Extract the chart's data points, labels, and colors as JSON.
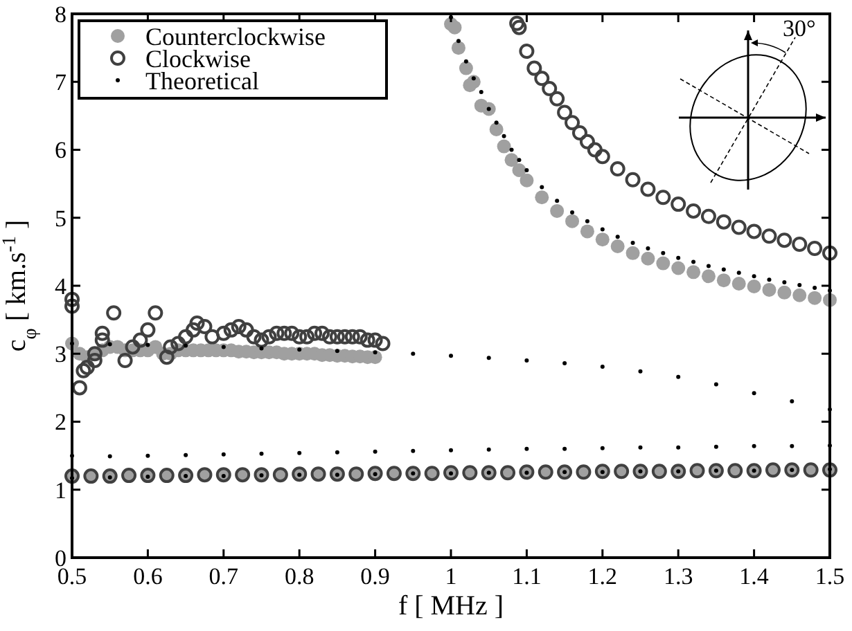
{
  "chart_data": {
    "type": "scatter",
    "xlabel": "f [ MHz ]",
    "ylabel": "c$_{φ}$ [ km.s$^{-1}$ ]",
    "xlim": [
      0.5,
      1.5
    ],
    "ylim": [
      0,
      8
    ],
    "xticks": [
      0.5,
      0.6,
      0.7,
      0.8,
      0.9,
      1,
      1.1,
      1.2,
      1.3,
      1.4,
      1.5
    ],
    "yticks": [
      0,
      1,
      2,
      3,
      4,
      5,
      6,
      7,
      8
    ],
    "grid": false,
    "legend": "top left",
    "marker": "circle",
    "annotations": [
      "30°"
    ],
    "series": [
      {
        "name": "Counterclockwise",
        "color": "#a0a0a0",
        "x": [
          0.5,
          0.525,
          0.55,
          0.575,
          0.6,
          0.625,
          0.65,
          0.675,
          0.7,
          0.725,
          0.75,
          0.775,
          0.8,
          0.825,
          0.85,
          0.875,
          0.9,
          0.925,
          0.95,
          0.975,
          1,
          1.025,
          1.05,
          1.075,
          1.1,
          1.125,
          1.15,
          1.175,
          1.2,
          1.225,
          1.25,
          1.275,
          1.3,
          1.325,
          1.35,
          1.375,
          1.4,
          1.425,
          1.45,
          1.475,
          1.5,
          0.5,
          0.51,
          0.52,
          0.53,
          0.54,
          0.55,
          0.56,
          0.57,
          0.58,
          0.59,
          0.6,
          0.61,
          0.62,
          0.63,
          0.64,
          0.65,
          0.66,
          0.67,
          0.68,
          0.69,
          0.7,
          0.71,
          0.72,
          0.73,
          0.74,
          0.75,
          0.76,
          0.77,
          0.78,
          0.79,
          0.8,
          0.81,
          0.82,
          0.83,
          0.84,
          0.85,
          0.86,
          0.87,
          0.88,
          0.89,
          0.9,
          1,
          1.005,
          1.01,
          1.02,
          1.025,
          1.03,
          1.04,
          1.05,
          1.06,
          1.07,
          1.08,
          1.09,
          1.1,
          1.12,
          1.14,
          1.16,
          1.18,
          1.2,
          1.22,
          1.24,
          1.26,
          1.28,
          1.3,
          1.32,
          1.34,
          1.36,
          1.38,
          1.4,
          1.42,
          1.44,
          1.46,
          1.48,
          1.5
        ],
        "values": [
          1.2,
          1.2,
          1.2,
          1.21,
          1.21,
          1.21,
          1.21,
          1.21,
          1.22,
          1.22,
          1.22,
          1.22,
          1.22,
          1.23,
          1.23,
          1.23,
          1.23,
          1.24,
          1.24,
          1.24,
          1.24,
          1.24,
          1.25,
          1.25,
          1.25,
          1.25,
          1.26,
          1.26,
          1.26,
          1.26,
          1.26,
          1.27,
          1.27,
          1.27,
          1.27,
          1.28,
          1.28,
          1.28,
          1.28,
          1.28,
          1.28,
          3.15,
          3.0,
          2.95,
          3.0,
          3.05,
          3.1,
          3.1,
          3.05,
          3.05,
          3.05,
          3.05,
          3.1,
          3.0,
          3.0,
          3.05,
          3.05,
          3.05,
          3.05,
          3.05,
          3.05,
          3.05,
          3.05,
          3.03,
          3.03,
          3.02,
          3.02,
          3.02,
          3.02,
          3.0,
          3.0,
          3.0,
          3.0,
          3.0,
          2.98,
          2.98,
          2.97,
          2.97,
          2.96,
          2.96,
          2.95,
          2.95,
          7.85,
          7.8,
          7.5,
          7.2,
          6.95,
          7.0,
          6.65,
          6.6,
          6.3,
          6.05,
          5.85,
          5.7,
          5.55,
          5.3,
          5.1,
          4.95,
          4.8,
          4.68,
          4.58,
          4.48,
          4.4,
          4.33,
          4.26,
          4.2,
          4.14,
          4.08,
          4.03,
          3.99,
          3.94,
          3.9,
          3.86,
          3.82,
          3.79
        ]
      },
      {
        "name": "Clockwise",
        "color": "#404040",
        "x": [
          0.5,
          0.525,
          0.55,
          0.575,
          0.6,
          0.625,
          0.65,
          0.675,
          0.7,
          0.725,
          0.75,
          0.775,
          0.8,
          0.825,
          0.85,
          0.875,
          0.9,
          0.925,
          0.95,
          0.975,
          1,
          1.025,
          1.05,
          1.075,
          1.1,
          1.125,
          1.15,
          1.175,
          1.2,
          1.225,
          1.25,
          1.275,
          1.3,
          1.325,
          1.35,
          1.375,
          1.4,
          1.425,
          1.45,
          1.475,
          1.5,
          0.5,
          0.5,
          0.51,
          0.515,
          0.52,
          0.53,
          0.53,
          0.54,
          0.54,
          0.555,
          0.57,
          0.58,
          0.59,
          0.6,
          0.61,
          0.625,
          0.63,
          0.64,
          0.65,
          0.66,
          0.665,
          0.675,
          0.685,
          0.7,
          0.71,
          0.72,
          0.73,
          0.74,
          0.75,
          0.76,
          0.77,
          0.78,
          0.79,
          0.8,
          0.81,
          0.82,
          0.83,
          0.84,
          0.85,
          0.86,
          0.87,
          0.88,
          0.89,
          0.9,
          0.91,
          1.087,
          1.09,
          1.1,
          1.11,
          1.12,
          1.13,
          1.14,
          1.15,
          1.16,
          1.17,
          1.18,
          1.19,
          1.2,
          1.22,
          1.24,
          1.26,
          1.28,
          1.3,
          1.32,
          1.34,
          1.36,
          1.38,
          1.4,
          1.42,
          1.44,
          1.46,
          1.48,
          1.5
        ],
        "values": [
          1.2,
          1.2,
          1.2,
          1.21,
          1.21,
          1.21,
          1.21,
          1.22,
          1.22,
          1.22,
          1.22,
          1.22,
          1.23,
          1.23,
          1.23,
          1.23,
          1.24,
          1.24,
          1.24,
          1.24,
          1.25,
          1.25,
          1.25,
          1.25,
          1.26,
          1.26,
          1.26,
          1.26,
          1.27,
          1.27,
          1.27,
          1.27,
          1.27,
          1.28,
          1.28,
          1.28,
          1.28,
          1.29,
          1.29,
          1.29,
          1.29,
          3.8,
          3.7,
          2.5,
          2.75,
          2.8,
          2.9,
          3.0,
          3.3,
          3.2,
          3.6,
          2.9,
          3.1,
          3.2,
          3.35,
          3.6,
          2.95,
          3.1,
          3.15,
          3.25,
          3.35,
          3.45,
          3.4,
          3.25,
          3.3,
          3.35,
          3.4,
          3.35,
          3.25,
          3.2,
          3.25,
          3.3,
          3.3,
          3.3,
          3.25,
          3.25,
          3.3,
          3.3,
          3.25,
          3.25,
          3.25,
          3.25,
          3.25,
          3.2,
          3.2,
          3.15,
          7.86,
          7.8,
          7.45,
          7.2,
          7.05,
          6.9,
          6.75,
          6.55,
          6.4,
          6.25,
          6.12,
          6.0,
          5.9,
          5.72,
          5.56,
          5.42,
          5.3,
          5.2,
          5.1,
          5.02,
          4.94,
          4.86,
          4.8,
          4.73,
          4.67,
          4.61,
          4.55,
          4.48
        ]
      },
      {
        "name": "Theoretical",
        "color": "#000000",
        "x": [
          0.5,
          0.55,
          0.6,
          0.65,
          0.7,
          0.75,
          0.8,
          0.85,
          0.9,
          0.95,
          1,
          1.05,
          1.1,
          1.15,
          1.2,
          1.25,
          1.3,
          1.35,
          1.4,
          1.45,
          1.5,
          0.5,
          0.55,
          0.6,
          0.65,
          0.7,
          0.75,
          0.8,
          0.85,
          0.9,
          0.95,
          1,
          1.05,
          1.1,
          1.15,
          1.2,
          1.25,
          1.3,
          1.35,
          1.4,
          1.45,
          1.5,
          0.5,
          0.55,
          0.6,
          0.65,
          0.7,
          0.75,
          0.8,
          0.85,
          0.9,
          0.95,
          1,
          1.05,
          1.1,
          1.15,
          1.2,
          1.25,
          1.3,
          1.35,
          1.4,
          1.45,
          1.5,
          1,
          1.01,
          1.02,
          1.03,
          1.04,
          1.05,
          1.06,
          1.07,
          1.08,
          1.09,
          1.1,
          1.12,
          1.14,
          1.16,
          1.18,
          1.2,
          1.22,
          1.24,
          1.26,
          1.28,
          1.3,
          1.32,
          1.34,
          1.36,
          1.38,
          1.4,
          1.42,
          1.44,
          1.46,
          1.48,
          1.5
        ],
        "values": [
          1.17,
          1.18,
          1.19,
          1.2,
          1.2,
          1.21,
          1.22,
          1.22,
          1.23,
          1.24,
          1.24,
          1.25,
          1.25,
          1.26,
          1.26,
          1.27,
          1.27,
          1.28,
          1.28,
          1.29,
          1.3,
          1.5,
          1.49,
          1.5,
          1.51,
          1.52,
          1.53,
          1.54,
          1.55,
          1.56,
          1.57,
          1.58,
          1.59,
          1.6,
          1.6,
          1.61,
          1.62,
          1.62,
          1.63,
          1.64,
          1.64,
          1.65,
          3.15,
          3.14,
          3.13,
          3.12,
          3.1,
          3.08,
          3.06,
          3.04,
          3.02,
          3.0,
          2.97,
          2.94,
          2.9,
          2.86,
          2.81,
          2.74,
          2.66,
          2.55,
          2.42,
          2.3,
          2.18,
          7.95,
          7.6,
          7.3,
          7.05,
          6.85,
          6.6,
          6.4,
          6.2,
          6.0,
          5.85,
          5.7,
          5.45,
          5.25,
          5.08,
          4.95,
          4.83,
          4.72,
          4.63,
          4.55,
          4.48,
          4.41,
          4.35,
          4.29,
          4.24,
          4.19,
          4.14,
          4.09,
          4.05,
          4.01,
          3.97,
          3.93
        ]
      }
    ]
  }
}
